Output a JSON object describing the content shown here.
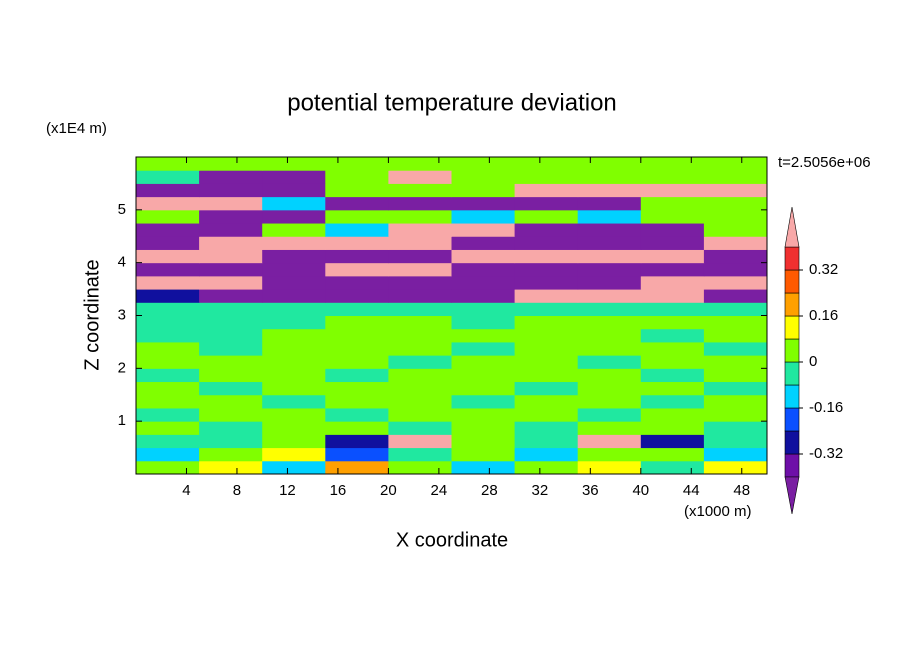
{
  "chart_data": {
    "type": "contour",
    "title": "potential temperature deviation",
    "time_label": "t=2.5056e+06",
    "x_label": "X coordinate",
    "y_label": "Z coordinate",
    "x_unit": "(x1000 m)",
    "y_unit": "(x1E4 m)",
    "xlim": [
      0,
      50
    ],
    "xticks": [
      4,
      8,
      12,
      16,
      20,
      24,
      28,
      32,
      36,
      40,
      44,
      48
    ],
    "ylim": [
      0,
      6
    ],
    "yticks": [
      1,
      2,
      3,
      4,
      5
    ],
    "x": [
      2.5,
      7.5,
      12.5,
      17.5,
      22.5,
      27.5,
      32.5,
      37.5,
      42.5,
      47.5
    ],
    "y": [
      0.125,
      0.375,
      0.625,
      0.875,
      1.125,
      1.375,
      1.625,
      1.875,
      2.125,
      2.375,
      2.625,
      2.875,
      3.125,
      3.375,
      3.625,
      3.875,
      4.125,
      4.375,
      4.625,
      4.875,
      5.125,
      5.375,
      5.625,
      5.875
    ],
    "z": [
      [
        0.05,
        0.1,
        -0.1,
        0.2,
        0.03,
        -0.12,
        0.03,
        0.1,
        -0.05,
        0.12
      ],
      [
        -0.1,
        0.03,
        0.15,
        -0.2,
        -0.05,
        0.03,
        -0.1,
        0.03,
        0.05,
        -0.12
      ],
      [
        -0.05,
        -0.02,
        0.03,
        -0.3,
        0.45,
        0.03,
        -0.02,
        0.45,
        -0.3,
        -0.05
      ],
      [
        0.03,
        -0.03,
        0.03,
        0.03,
        -0.03,
        0.03,
        -0.03,
        0.03,
        0.03,
        -0.03
      ],
      [
        -0.03,
        0.03,
        0.03,
        -0.03,
        0.03,
        0.03,
        0.03,
        -0.03,
        0.03,
        0.03
      ],
      [
        0.03,
        0.03,
        -0.03,
        0.03,
        0.03,
        -0.03,
        0.03,
        0.03,
        -0.03,
        0.03
      ],
      [
        0.03,
        -0.03,
        0.03,
        0.03,
        0.03,
        0.03,
        -0.03,
        0.03,
        0.03,
        -0.03
      ],
      [
        -0.03,
        0.03,
        0.03,
        -0.03,
        0.03,
        0.03,
        0.03,
        0.03,
        -0.03,
        0.03
      ],
      [
        0.03,
        0.03,
        0.03,
        0.03,
        -0.03,
        0.03,
        0.03,
        -0.03,
        0.03,
        0.03
      ],
      [
        0.03,
        -0.03,
        0.03,
        0.03,
        0.03,
        -0.03,
        0.03,
        0.03,
        0.03,
        -0.03
      ],
      [
        -0.03,
        -0.03,
        0.03,
        0.03,
        0.03,
        0.03,
        0.03,
        0.03,
        -0.03,
        0.03
      ],
      [
        -0.03,
        -0.03,
        -0.03,
        0.03,
        0.03,
        -0.03,
        0.03,
        0.03,
        0.03,
        0.03
      ],
      [
        -0.03,
        -0.03,
        -0.03,
        -0.03,
        -0.03,
        -0.03,
        -0.03,
        -0.03,
        -0.03,
        -0.03
      ],
      [
        -0.3,
        -0.5,
        -0.5,
        -0.5,
        -0.5,
        -0.5,
        0.5,
        0.5,
        0.5,
        -0.5
      ],
      [
        0.5,
        0.5,
        -0.5,
        -0.5,
        -0.5,
        -0.5,
        -0.5,
        -0.5,
        0.5,
        0.5
      ],
      [
        -0.5,
        -0.5,
        -0.5,
        0.5,
        0.5,
        -0.5,
        -0.5,
        -0.5,
        -0.5,
        -0.5
      ],
      [
        0.5,
        0.5,
        -0.5,
        -0.5,
        -0.5,
        0.5,
        0.5,
        0.5,
        0.5,
        -0.5
      ],
      [
        -0.5,
        0.5,
        0.5,
        0.5,
        0.5,
        -0.5,
        -0.5,
        -0.5,
        -0.5,
        0.5
      ],
      [
        -0.5,
        -0.5,
        0.03,
        -0.1,
        0.5,
        0.5,
        -0.5,
        -0.5,
        -0.5,
        0.03
      ],
      [
        0.03,
        -0.5,
        -0.5,
        0.03,
        0.03,
        -0.1,
        0.03,
        -0.1,
        0.03,
        0.03
      ],
      [
        0.5,
        0.5,
        -0.1,
        -0.5,
        -0.5,
        -0.5,
        -0.5,
        -0.5,
        0.03,
        0.03
      ],
      [
        -0.5,
        -0.5,
        -0.5,
        0.03,
        0.03,
        0.03,
        0.5,
        0.5,
        0.5,
        0.5
      ],
      [
        -0.03,
        -0.5,
        -0.5,
        0.03,
        0.5,
        0.03,
        0.03,
        0.03,
        0.03,
        0.03
      ],
      [
        0.03,
        0.03,
        0.03,
        0.03,
        0.03,
        0.03,
        0.03,
        0.03,
        0.03,
        0.03
      ]
    ],
    "colorbar": {
      "levels": [
        -0.4,
        -0.32,
        -0.24,
        -0.16,
        -0.08,
        0,
        0.08,
        0.16,
        0.24,
        0.32,
        0.4
      ],
      "colors": [
        "#6e0fa8",
        "#10109e",
        "#0a50ff",
        "#00d2ff",
        "#20e8a0",
        "#80ff00",
        "#ffff00",
        "#ffa000",
        "#ff5a00",
        "#f03030"
      ],
      "under_color": "#7a1fa2",
      "over_color": "#f8a8a8",
      "ticks": [
        -0.32,
        -0.16,
        0,
        0.16,
        0.32
      ]
    }
  }
}
